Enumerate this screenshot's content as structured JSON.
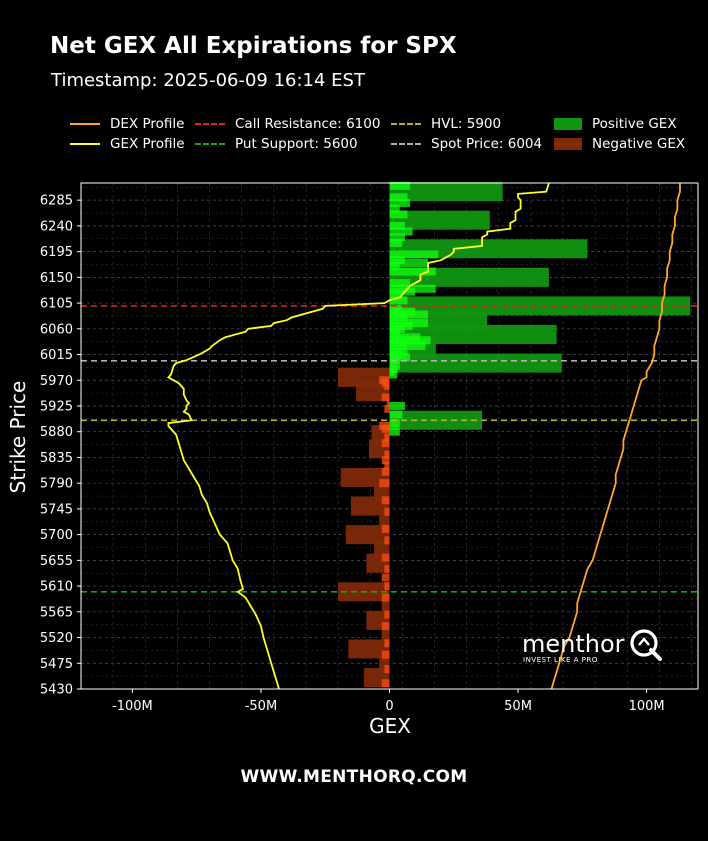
{
  "title": "Net GEX All Expirations for SPX",
  "timestamp": "Timestamp: 2025-06-09 16:14 EST",
  "footer": "WWW.MENTHORQ.COM",
  "logo": {
    "name": "menthor",
    "tagline": "INVEST LIKE A PRO",
    "icon": "q-magnifier-icon"
  },
  "legend": {
    "dex": "DEX Profile",
    "gex": "GEX Profile",
    "call_res": "Call Resistance: 6100",
    "put_sup": "Put Support: 5600",
    "hvl": "HVL: 5900",
    "spot": "Spot Price: 6004",
    "pos": "Positive GEX",
    "neg": "Negative GEX"
  },
  "colors": {
    "dex": "#ffa533",
    "gex": "#ffff26",
    "call_res": "#e02020",
    "put_sup": "#1fa01f",
    "hvl": "#b8b32a",
    "spot": "#b0b0b0",
    "pos_dark": "#119611",
    "pos_bright": "#12ff12",
    "neg_dark": "#7e2a09",
    "neg_bright": "#ff4e12"
  },
  "chart_data": {
    "type": "bar",
    "orientation": "horizontal",
    "xlabel": "GEX",
    "ylabel": "Strike Price",
    "xlim": [
      -120,
      120
    ],
    "ylim": [
      5430,
      6315
    ],
    "x_unit": "M",
    "x_ticks": [
      -100,
      -50,
      0,
      50,
      100
    ],
    "x_tick_labels": [
      "-100M",
      "-50M",
      "0",
      "50M",
      "100M"
    ],
    "y_ticks": [
      5430,
      5475,
      5520,
      5565,
      5610,
      5655,
      5700,
      5745,
      5790,
      5835,
      5880,
      5925,
      5970,
      6015,
      6060,
      6105,
      6150,
      6195,
      6240,
      6285
    ],
    "grid": true,
    "levels": {
      "call_resistance": 6100,
      "put_support": 5600,
      "hvl": 5900,
      "spot": 6004
    },
    "gex_bars_major": [
      {
        "strike": 6300,
        "value": 44
      },
      {
        "strike": 6250,
        "value": 39
      },
      {
        "strike": 6200,
        "value": 77
      },
      {
        "strike": 6150,
        "value": 62
      },
      {
        "strike": 6100,
        "value": 117
      },
      {
        "strike": 6075,
        "value": 38
      },
      {
        "strike": 6050,
        "value": 65
      },
      {
        "strike": 6025,
        "value": 18
      },
      {
        "strike": 6000,
        "value": 67
      },
      {
        "strike": 5975,
        "value": -20
      },
      {
        "strike": 5950,
        "value": -13
      },
      {
        "strike": 5900,
        "value": 36
      },
      {
        "strike": 5875,
        "value": -7
      },
      {
        "strike": 5850,
        "value": -8
      },
      {
        "strike": 5800,
        "value": -19
      },
      {
        "strike": 5775,
        "value": -6
      },
      {
        "strike": 5750,
        "value": -15
      },
      {
        "strike": 5725,
        "value": -4
      },
      {
        "strike": 5700,
        "value": -17
      },
      {
        "strike": 5675,
        "value": -6
      },
      {
        "strike": 5650,
        "value": -9
      },
      {
        "strike": 5600,
        "value": -20
      },
      {
        "strike": 5575,
        "value": -3
      },
      {
        "strike": 5550,
        "value": -9
      },
      {
        "strike": 5525,
        "value": -3
      },
      {
        "strike": 5500,
        "value": -16
      },
      {
        "strike": 5475,
        "value": -4
      },
      {
        "strike": 5450,
        "value": -10
      }
    ],
    "gex_bars_minor": [
      {
        "strike": 6310,
        "value": 8
      },
      {
        "strike": 6290,
        "value": 7
      },
      {
        "strike": 6280,
        "value": 8
      },
      {
        "strike": 6270,
        "value": 4
      },
      {
        "strike": 6260,
        "value": 7
      },
      {
        "strike": 6240,
        "value": 6
      },
      {
        "strike": 6230,
        "value": 9
      },
      {
        "strike": 6220,
        "value": 6
      },
      {
        "strike": 6210,
        "value": 5
      },
      {
        "strike": 6190,
        "value": 19
      },
      {
        "strike": 6180,
        "value": 6
      },
      {
        "strike": 6175,
        "value": 15
      },
      {
        "strike": 6170,
        "value": 4
      },
      {
        "strike": 6160,
        "value": 18
      },
      {
        "strike": 6140,
        "value": 8
      },
      {
        "strike": 6130,
        "value": 18
      },
      {
        "strike": 6125,
        "value": 10
      },
      {
        "strike": 6120,
        "value": 5
      },
      {
        "strike": 6110,
        "value": 7
      },
      {
        "strike": 6095,
        "value": 5
      },
      {
        "strike": 6090,
        "value": 10
      },
      {
        "strike": 6085,
        "value": 15
      },
      {
        "strike": 6080,
        "value": 7
      },
      {
        "strike": 6070,
        "value": 15
      },
      {
        "strike": 6065,
        "value": 9
      },
      {
        "strike": 6060,
        "value": 6
      },
      {
        "strike": 6055,
        "value": 4
      },
      {
        "strike": 6045,
        "value": 12
      },
      {
        "strike": 6040,
        "value": 16
      },
      {
        "strike": 6035,
        "value": 7
      },
      {
        "strike": 6030,
        "value": 14
      },
      {
        "strike": 6020,
        "value": 7
      },
      {
        "strike": 6015,
        "value": 5
      },
      {
        "strike": 6010,
        "value": 8
      },
      {
        "strike": 6005,
        "value": 4
      },
      {
        "strike": 5995,
        "value": 4
      },
      {
        "strike": 5990,
        "value": 3
      },
      {
        "strike": 5985,
        "value": 2
      },
      {
        "strike": 5980,
        "value": 3
      },
      {
        "strike": 5970,
        "value": -4
      },
      {
        "strike": 5965,
        "value": -3
      },
      {
        "strike": 5960,
        "value": -2
      },
      {
        "strike": 5940,
        "value": -3
      },
      {
        "strike": 5930,
        "value": -1
      },
      {
        "strike": 5925,
        "value": 6
      },
      {
        "strike": 5920,
        "value": -2
      },
      {
        "strike": 5910,
        "value": 5
      },
      {
        "strike": 5895,
        "value": 4
      },
      {
        "strike": 5890,
        "value": -4
      },
      {
        "strike": 5885,
        "value": -3
      },
      {
        "strike": 5880,
        "value": 4
      },
      {
        "strike": 5870,
        "value": -2
      },
      {
        "strike": 5860,
        "value": -3
      },
      {
        "strike": 5840,
        "value": -2
      },
      {
        "strike": 5830,
        "value": -3
      },
      {
        "strike": 5820,
        "value": -2
      },
      {
        "strike": 5810,
        "value": -3
      },
      {
        "strike": 5790,
        "value": -4
      },
      {
        "strike": 5760,
        "value": -3
      },
      {
        "strike": 5740,
        "value": -2
      },
      {
        "strike": 5710,
        "value": -3
      },
      {
        "strike": 5690,
        "value": -2
      },
      {
        "strike": 5660,
        "value": -3
      },
      {
        "strike": 5640,
        "value": -2
      },
      {
        "strike": 5625,
        "value": -3
      },
      {
        "strike": 5610,
        "value": -2
      },
      {
        "strike": 5590,
        "value": -3
      },
      {
        "strike": 5560,
        "value": -2
      },
      {
        "strike": 5540,
        "value": -3
      },
      {
        "strike": 5510,
        "value": -2
      },
      {
        "strike": 5490,
        "value": -3
      },
      {
        "strike": 5465,
        "value": -2
      },
      {
        "strike": 5440,
        "value": -3
      }
    ],
    "gex_profile": [
      [
        6315,
        62
      ],
      [
        6300,
        61
      ],
      [
        6296,
        50
      ],
      [
        6290,
        50
      ],
      [
        6285,
        51
      ],
      [
        6270,
        51
      ],
      [
        6265,
        49
      ],
      [
        6260,
        49
      ],
      [
        6250,
        49
      ],
      [
        6245,
        47
      ],
      [
        6235,
        47
      ],
      [
        6230,
        38
      ],
      [
        6225,
        38
      ],
      [
        6220,
        36
      ],
      [
        6205,
        36
      ],
      [
        6200,
        25
      ],
      [
        6195,
        25
      ],
      [
        6190,
        24
      ],
      [
        6180,
        20
      ],
      [
        6175,
        15
      ],
      [
        6160,
        15
      ],
      [
        6155,
        12
      ],
      [
        6145,
        12
      ],
      [
        6135,
        8
      ],
      [
        6125,
        6
      ],
      [
        6115,
        4
      ],
      [
        6110,
        0
      ],
      [
        6105,
        -2
      ],
      [
        6100,
        -25
      ],
      [
        6095,
        -26
      ],
      [
        6080,
        -38
      ],
      [
        6075,
        -40
      ],
      [
        6070,
        -45
      ],
      [
        6065,
        -46
      ],
      [
        6060,
        -55
      ],
      [
        6055,
        -56
      ],
      [
        6050,
        -60
      ],
      [
        6045,
        -64
      ],
      [
        6040,
        -66
      ],
      [
        6030,
        -69
      ],
      [
        6025,
        -70
      ],
      [
        6020,
        -72
      ],
      [
        6015,
        -74
      ],
      [
        6005,
        -79
      ],
      [
        6000,
        -83
      ],
      [
        5995,
        -84
      ],
      [
        5980,
        -85
      ],
      [
        5975,
        -86
      ],
      [
        5970,
        -84
      ],
      [
        5965,
        -82
      ],
      [
        5960,
        -81
      ],
      [
        5955,
        -80
      ],
      [
        5945,
        -80
      ],
      [
        5935,
        -79
      ],
      [
        5930,
        -78
      ],
      [
        5925,
        -79
      ],
      [
        5920,
        -79
      ],
      [
        5915,
        -80
      ],
      [
        5910,
        -78
      ],
      [
        5900,
        -77
      ],
      [
        5895,
        -86
      ],
      [
        5890,
        -86
      ],
      [
        5885,
        -85
      ],
      [
        5875,
        -83
      ],
      [
        5860,
        -82
      ],
      [
        5845,
        -81
      ],
      [
        5830,
        -80
      ],
      [
        5815,
        -78
      ],
      [
        5800,
        -76
      ],
      [
        5785,
        -74
      ],
      [
        5770,
        -73
      ],
      [
        5755,
        -71
      ],
      [
        5740,
        -70
      ],
      [
        5720,
        -68
      ],
      [
        5700,
        -66
      ],
      [
        5685,
        -63
      ],
      [
        5670,
        -62
      ],
      [
        5655,
        -61
      ],
      [
        5640,
        -59
      ],
      [
        5620,
        -58
      ],
      [
        5605,
        -57
      ],
      [
        5600,
        -59
      ],
      [
        5590,
        -56
      ],
      [
        5575,
        -54
      ],
      [
        5560,
        -52
      ],
      [
        5540,
        -50
      ],
      [
        5520,
        -49
      ],
      [
        5505,
        -48
      ],
      [
        5490,
        -47
      ],
      [
        5475,
        -46
      ],
      [
        5460,
        -45
      ],
      [
        5445,
        -44
      ],
      [
        5430,
        -43
      ]
    ],
    "dex_profile": [
      [
        6315,
        113
      ],
      [
        6300,
        113
      ],
      [
        6285,
        112
      ],
      [
        6270,
        112
      ],
      [
        6255,
        111
      ],
      [
        6240,
        111
      ],
      [
        6225,
        110
      ],
      [
        6210,
        110
      ],
      [
        6195,
        109
      ],
      [
        6180,
        109
      ],
      [
        6165,
        108
      ],
      [
        6150,
        108
      ],
      [
        6135,
        107
      ],
      [
        6120,
        107
      ],
      [
        6105,
        106
      ],
      [
        6090,
        106
      ],
      [
        6075,
        105
      ],
      [
        6060,
        105
      ],
      [
        6045,
        104
      ],
      [
        6030,
        103
      ],
      [
        6015,
        103
      ],
      [
        6000,
        102
      ],
      [
        5985,
        100
      ],
      [
        5975,
        100
      ],
      [
        5970,
        98
      ],
      [
        5955,
        97
      ],
      [
        5940,
        96
      ],
      [
        5925,
        95
      ],
      [
        5910,
        94
      ],
      [
        5895,
        93
      ],
      [
        5880,
        92
      ],
      [
        5865,
        91
      ],
      [
        5850,
        91
      ],
      [
        5835,
        90
      ],
      [
        5820,
        89
      ],
      [
        5805,
        88
      ],
      [
        5790,
        88
      ],
      [
        5775,
        87
      ],
      [
        5760,
        86
      ],
      [
        5745,
        85
      ],
      [
        5730,
        84
      ],
      [
        5715,
        83
      ],
      [
        5700,
        82
      ],
      [
        5685,
        81
      ],
      [
        5670,
        80
      ],
      [
        5655,
        79
      ],
      [
        5640,
        77
      ],
      [
        5625,
        76
      ],
      [
        5610,
        75
      ],
      [
        5595,
        74
      ],
      [
        5580,
        73
      ],
      [
        5565,
        73
      ],
      [
        5550,
        72
      ],
      [
        5535,
        71
      ],
      [
        5520,
        70
      ],
      [
        5505,
        68
      ],
      [
        5490,
        67
      ],
      [
        5475,
        66
      ],
      [
        5460,
        65
      ],
      [
        5445,
        64
      ],
      [
        5430,
        63
      ]
    ]
  }
}
